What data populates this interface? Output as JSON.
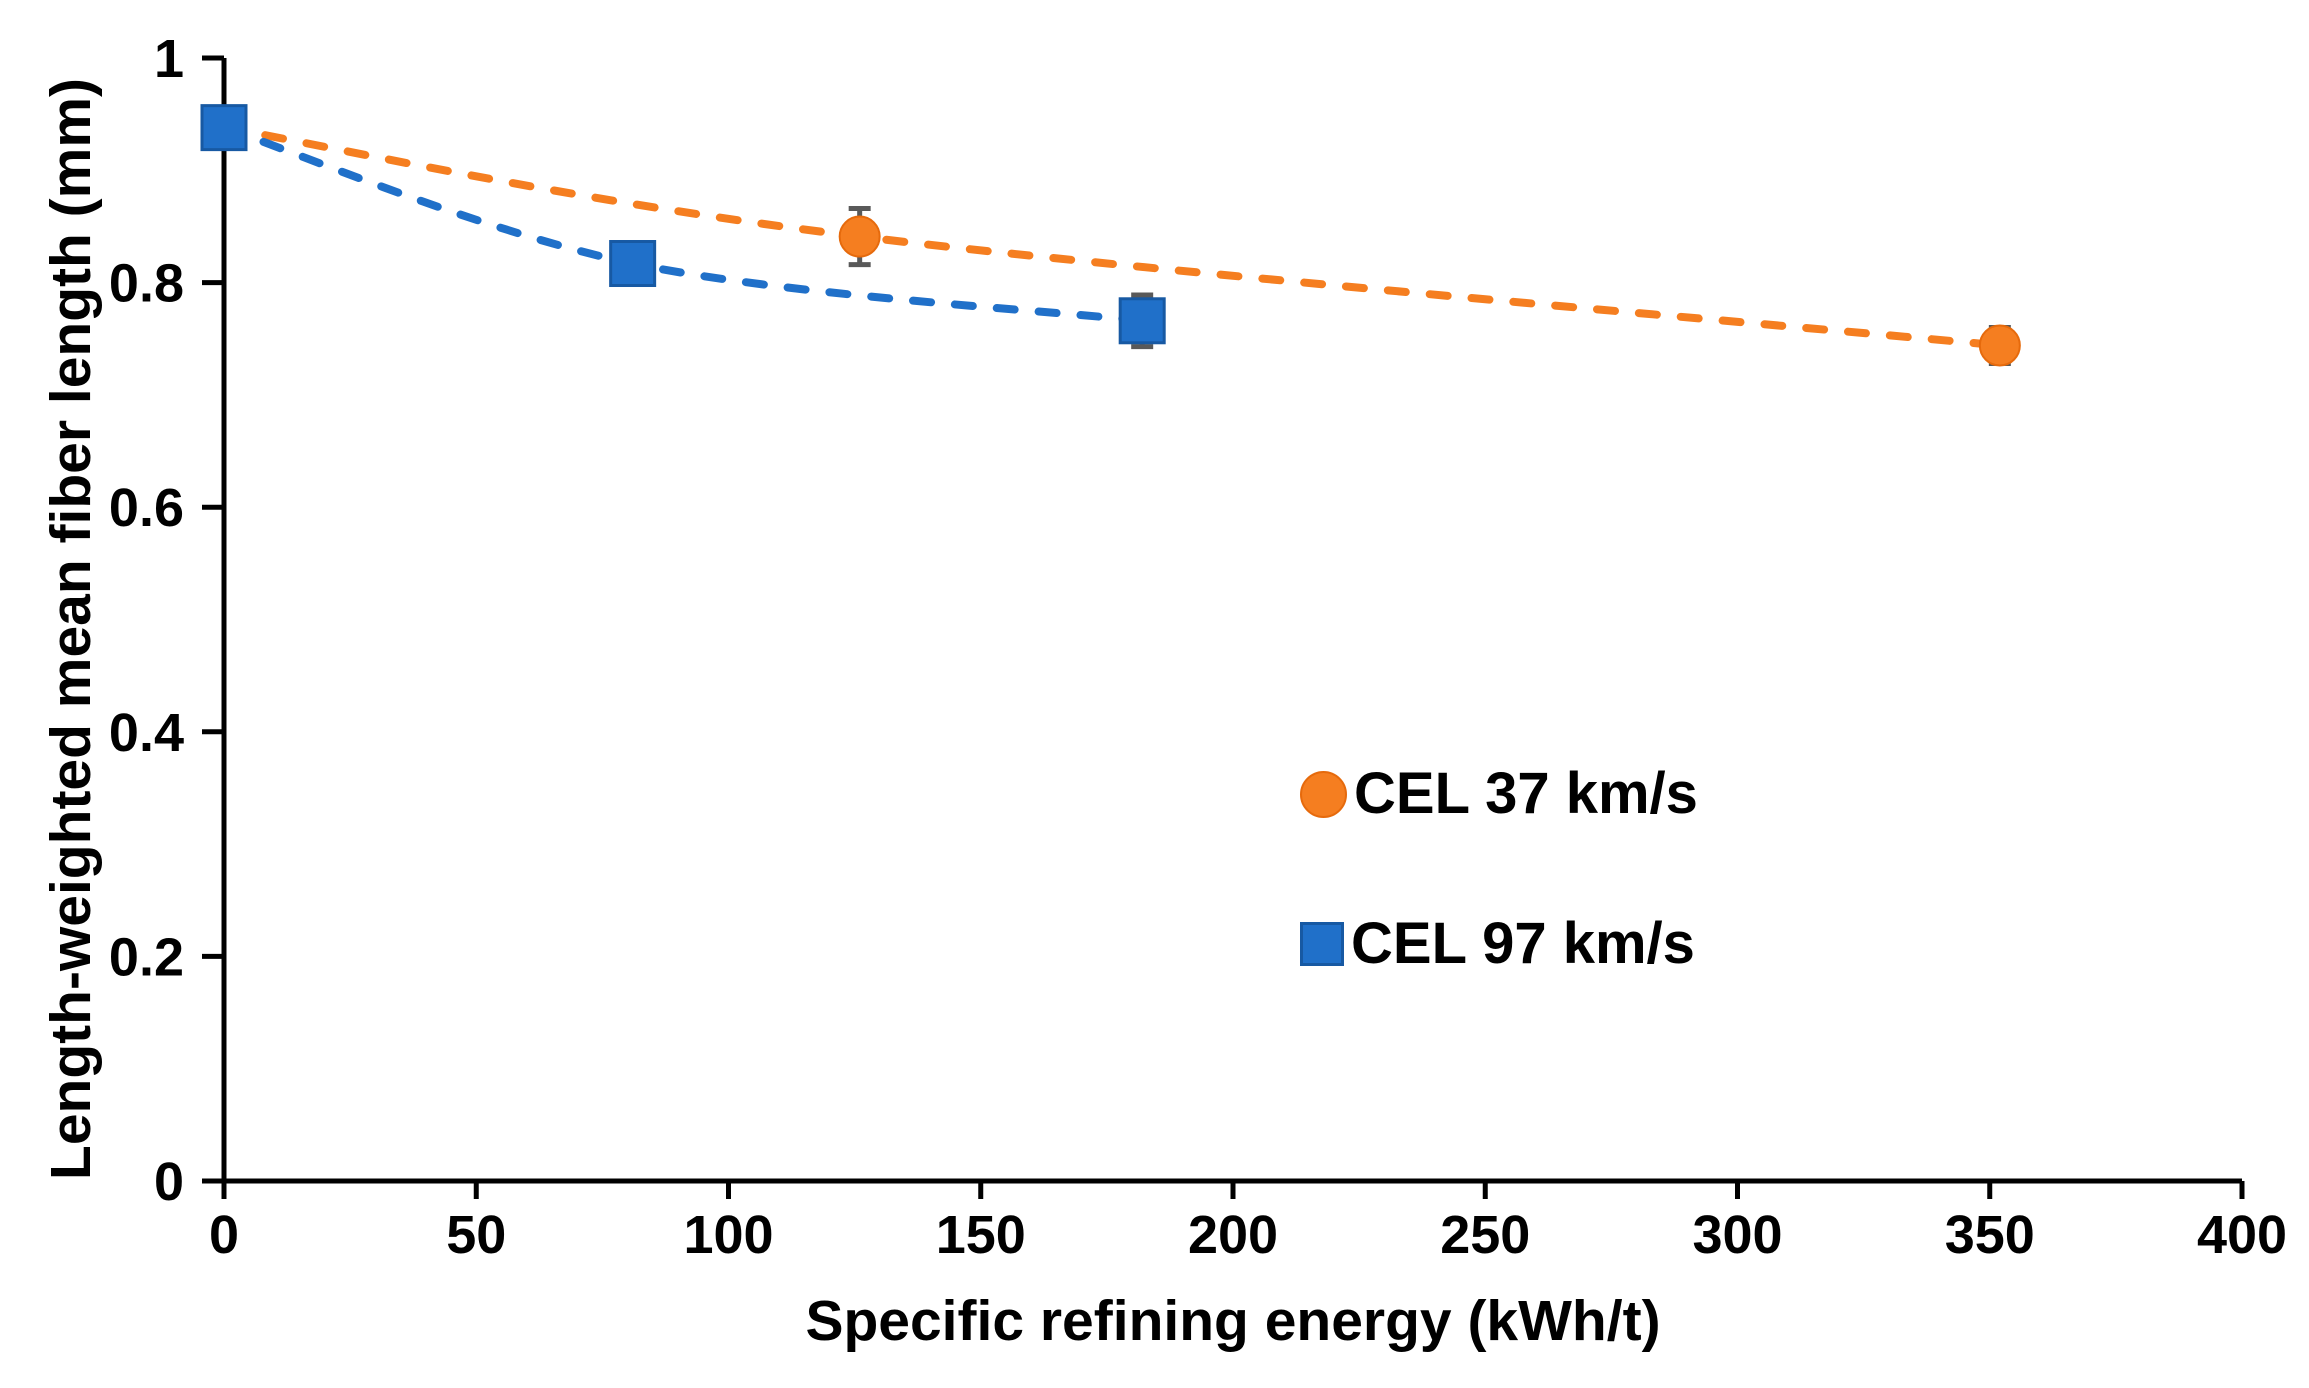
{
  "page": {
    "background": "#ffffff",
    "axis_color": "#000000",
    "error_bar_color": "#595959"
  },
  "chart_data": {
    "type": "scatter",
    "title": "",
    "xlabel": "Specific refining energy (kWh/t)",
    "ylabel": "Length-weighted mean fiber length (mm)",
    "xlim": [
      0,
      400
    ],
    "ylim": [
      0,
      1
    ],
    "xticks": [
      0,
      50,
      100,
      150,
      200,
      250,
      300,
      350,
      400
    ],
    "xtick_labels": [
      "0",
      "50",
      "100",
      "150",
      "200",
      "250",
      "300",
      "350",
      "400"
    ],
    "yticks": [
      0,
      0.2,
      0.4,
      0.6,
      0.8,
      1
    ],
    "ytick_labels": [
      "0",
      "0.2",
      "0.4",
      "0.6",
      "0.8",
      "1"
    ],
    "grid": false,
    "legend_position": "center-right",
    "line_style": "dashed-smooth",
    "series": [
      {
        "name": "CEL 37 km/s",
        "marker": "circle",
        "color": "#F57E20",
        "border_color": "#E66A0C",
        "points": [
          {
            "x": 0,
            "y": 0.938,
            "err": null
          },
          {
            "x": 126,
            "y": 0.841,
            "err": 0.025
          },
          {
            "x": 352,
            "y": 0.744,
            "err": 0.016
          }
        ]
      },
      {
        "name": "CEL 97 km/s",
        "marker": "square",
        "color": "#2070C9",
        "border_color": "#1759A3",
        "points": [
          {
            "x": 0,
            "y": 0.938,
            "err": null
          },
          {
            "x": 81,
            "y": 0.817,
            "err": null
          },
          {
            "x": 182,
            "y": 0.766,
            "err": 0.023
          }
        ]
      }
    ]
  }
}
